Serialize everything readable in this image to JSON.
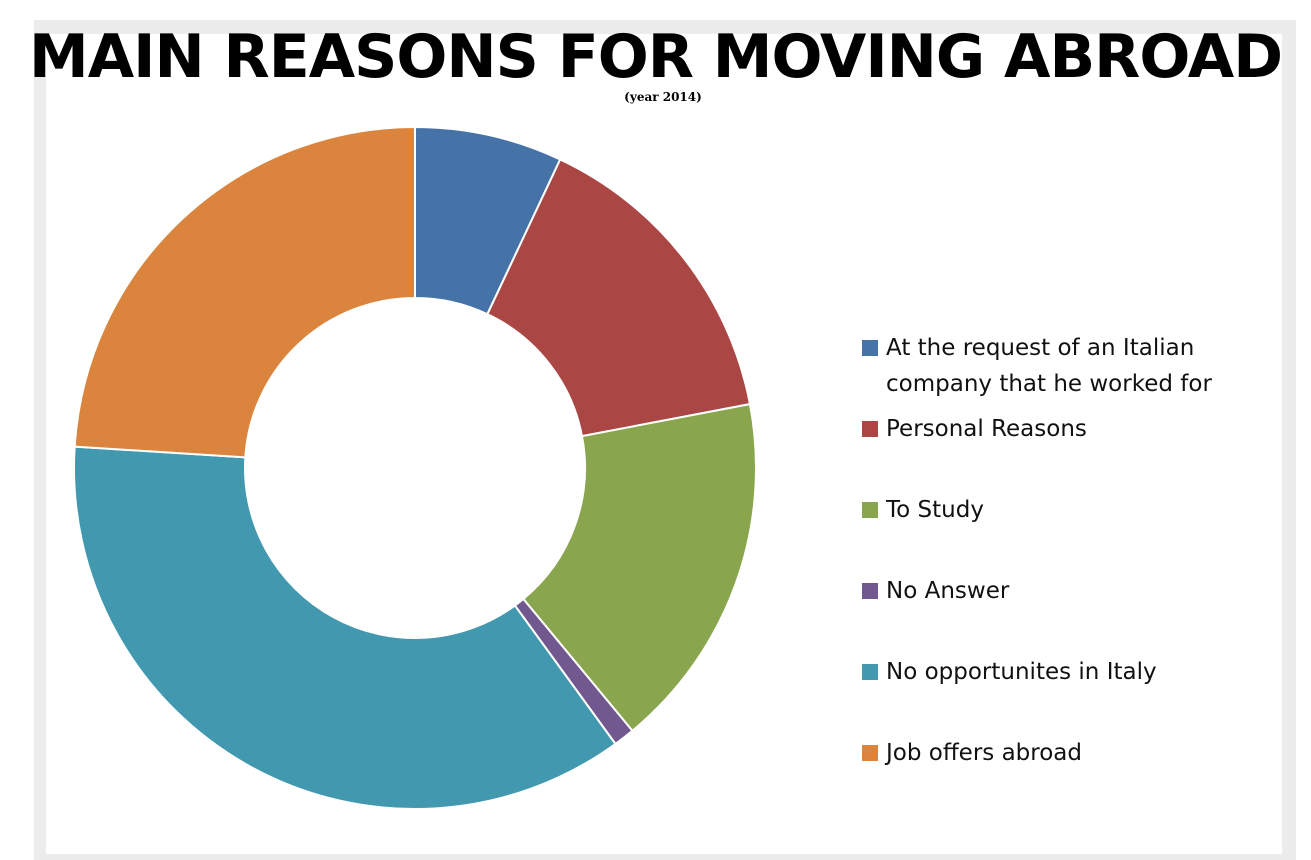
{
  "chart_data": {
    "type": "pie",
    "title": "MAIN REASONS FOR MOVING ABROAD",
    "subtitle": "(year 2014)",
    "donut": true,
    "legend_position": "right",
    "slices": [
      {
        "label": "At the request of an Italian company that he worked for",
        "value": 7,
        "color": "#4572a7"
      },
      {
        "label": "Personal Reasons",
        "value": 15,
        "color": "#aa4643"
      },
      {
        "label": "To Study",
        "value": 17,
        "color": "#89a54e"
      },
      {
        "label": "No Answer",
        "value": 1,
        "color": "#71588f"
      },
      {
        "label": "No opportunites in Italy",
        "value": 36,
        "color": "#4198af"
      },
      {
        "label": "Job offers abroad",
        "value": 24,
        "color": "#db843d"
      }
    ]
  }
}
